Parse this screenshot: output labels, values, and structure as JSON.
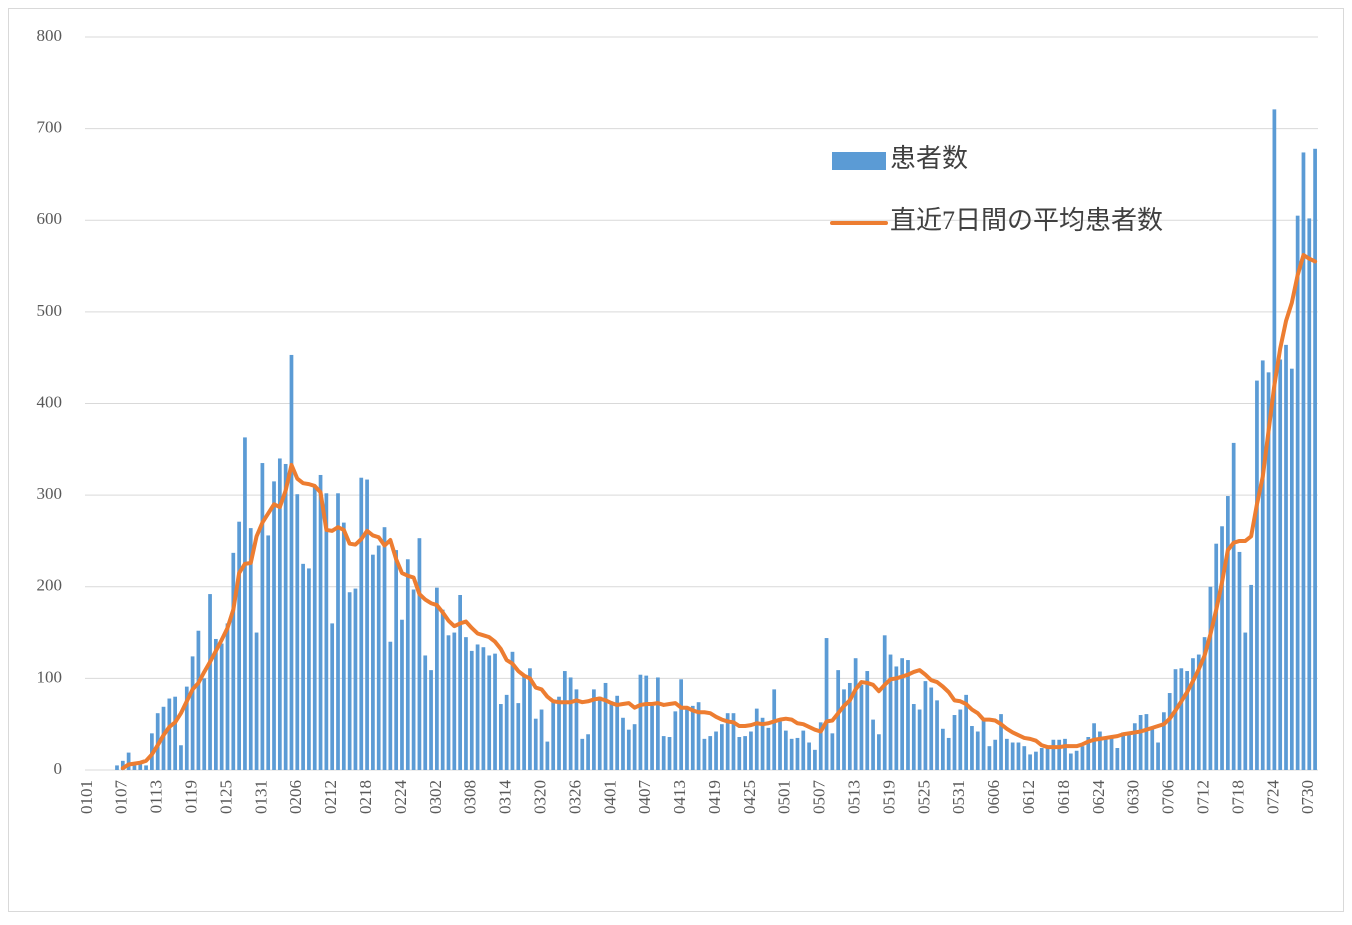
{
  "chart_data": {
    "type": "bar+line",
    "categories": [
      "0101",
      null,
      null,
      null,
      null,
      null,
      "0107",
      null,
      null,
      null,
      null,
      null,
      "0113",
      null,
      null,
      null,
      null,
      null,
      "0119",
      null,
      null,
      null,
      null,
      null,
      "0125",
      null,
      null,
      null,
      null,
      null,
      "0131",
      null,
      null,
      null,
      null,
      null,
      "0206",
      null,
      null,
      null,
      null,
      null,
      "0212",
      null,
      null,
      null,
      null,
      null,
      "0218",
      null,
      null,
      null,
      null,
      null,
      "0224",
      null,
      null,
      null,
      null,
      null,
      "0302",
      null,
      null,
      null,
      null,
      null,
      "0308",
      null,
      null,
      null,
      null,
      null,
      "0314",
      null,
      null,
      null,
      null,
      null,
      "0320",
      null,
      null,
      null,
      null,
      null,
      "0326",
      null,
      null,
      null,
      null,
      null,
      "0401",
      null,
      null,
      null,
      null,
      null,
      "0407",
      null,
      null,
      null,
      null,
      null,
      "0413",
      null,
      null,
      null,
      null,
      null,
      "0419",
      null,
      null,
      null,
      null,
      null,
      "0425",
      null,
      null,
      null,
      null,
      null,
      "0501",
      null,
      null,
      null,
      null,
      null,
      "0507",
      null,
      null,
      null,
      null,
      null,
      "0513",
      null,
      null,
      null,
      null,
      null,
      "0519",
      null,
      null,
      null,
      null,
      null,
      "0525",
      null,
      null,
      null,
      null,
      null,
      "0531",
      null,
      null,
      null,
      null,
      null,
      "0606",
      null,
      null,
      null,
      null,
      null,
      "0612",
      null,
      null,
      null,
      null,
      null,
      "0618",
      null,
      null,
      null,
      null,
      null,
      "0624",
      null,
      null,
      null,
      null,
      null,
      "0630",
      null,
      null,
      null,
      null,
      null,
      "0706",
      null,
      null,
      null,
      null,
      null,
      "0712",
      null,
      null,
      null,
      null,
      null,
      "0718",
      null,
      null,
      null,
      null,
      null,
      "0724",
      null,
      null,
      null,
      null,
      null,
      "0730",
      null
    ],
    "series": [
      {
        "name": "患者数",
        "kind": "bar",
        "color": "#5b9bd5",
        "values": [
          0,
          0,
          0,
          0,
          0,
          5,
          10,
          19,
          5,
          8,
          5,
          40,
          62,
          69,
          78,
          80,
          27,
          91,
          124,
          152,
          100,
          192,
          143,
          138,
          160,
          237,
          271,
          363,
          264,
          150,
          335,
          256,
          315,
          340,
          334,
          453,
          301,
          225,
          220,
          310,
          322,
          302,
          160,
          302,
          270,
          194,
          198,
          319,
          317,
          235,
          245,
          265,
          140,
          240,
          164,
          230,
          197,
          253,
          125,
          109,
          199,
          175,
          147,
          150,
          191,
          145,
          130,
          137,
          134,
          125,
          127,
          72,
          82,
          129,
          73,
          103,
          111,
          56,
          66,
          31,
          74,
          80,
          108,
          101,
          88,
          34,
          39,
          88,
          80,
          95,
          75,
          81,
          57,
          44,
          50,
          104,
          103,
          70,
          101,
          37,
          36,
          64,
          99,
          68,
          70,
          74,
          34,
          37,
          42,
          50,
          62,
          62,
          36,
          37,
          42,
          67,
          57,
          46,
          88,
          53,
          43,
          34,
          35,
          43,
          30,
          22,
          52,
          144,
          40,
          109,
          88,
          95,
          122,
          93,
          108,
          55,
          39,
          147,
          126,
          113,
          122,
          120,
          72,
          66,
          97,
          90,
          76,
          45,
          35,
          60,
          66,
          82,
          48,
          42,
          55,
          26,
          33,
          61,
          34,
          30,
          30,
          26,
          17,
          20,
          24,
          25,
          33,
          33,
          34,
          18,
          21,
          26,
          36,
          51,
          42,
          36,
          36,
          24,
          41,
          40,
          51,
          60,
          61,
          46,
          30,
          63,
          84,
          110,
          111,
          108,
          122,
          126,
          145,
          200,
          247,
          266,
          299,
          357,
          238,
          150,
          202,
          425,
          447,
          434,
          721,
          448,
          464,
          438,
          605,
          674,
          602,
          678
        ]
      },
      {
        "name": "直近7日間の平均患者数",
        "kind": "line",
        "color": "#ed7d31",
        "values": [
          null,
          null,
          null,
          null,
          null,
          null,
          2,
          6,
          7,
          8,
          10,
          17,
          27,
          38,
          47,
          52,
          62,
          75,
          88,
          95,
          107,
          118,
          130,
          142,
          155,
          175,
          215,
          225,
          226,
          255,
          270,
          280,
          290,
          287,
          305,
          333,
          318,
          313,
          312,
          310,
          303,
          262,
          261,
          265,
          262,
          247,
          246,
          252,
          261,
          256,
          254,
          245,
          251,
          230,
          215,
          212,
          210,
          192,
          186,
          182,
          180,
          172,
          163,
          157,
          160,
          162,
          155,
          149,
          147,
          145,
          140,
          132,
          120,
          116,
          108,
          103,
          100,
          90,
          88,
          80,
          75,
          74,
          74,
          74,
          76,
          74,
          75,
          77,
          78,
          76,
          73,
          71,
          72,
          73,
          68,
          71,
          72,
          72,
          73,
          71,
          72,
          73,
          68,
          68,
          65,
          63,
          63,
          62,
          58,
          55,
          53,
          52,
          48,
          48,
          49,
          51,
          50,
          51,
          53,
          55,
          56,
          55,
          51,
          50,
          47,
          44,
          42,
          53,
          54,
          62,
          70,
          76,
          88,
          96,
          95,
          93,
          86,
          93,
          99,
          100,
          102,
          104,
          107,
          109,
          104,
          98,
          96,
          91,
          85,
          76,
          75,
          72,
          66,
          62,
          55,
          55,
          54,
          50,
          45,
          41,
          38,
          35,
          34,
          32,
          27,
          25,
          25,
          25,
          26,
          26,
          26,
          28,
          31,
          33,
          34,
          35,
          36,
          37,
          39,
          40,
          41,
          42,
          44,
          46,
          48,
          50,
          56,
          65,
          75,
          85,
          97,
          110,
          125,
          148,
          175,
          205,
          240,
          248,
          250,
          250,
          255,
          290,
          320,
          370,
          420,
          460,
          490,
          510,
          540,
          562,
          558,
          555
        ]
      }
    ],
    "ylim": [
      0,
      800
    ],
    "yticks": [
      0,
      100,
      200,
      300,
      400,
      500,
      600,
      700,
      800
    ],
    "grid": true
  }
}
